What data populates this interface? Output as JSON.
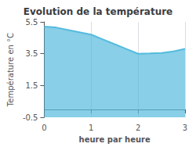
{
  "chart_data": {
    "type": "area",
    "title": "Evolution de la température",
    "xlabel": "heure par heure",
    "ylabel": "Température en °C",
    "color": "#55bbdd",
    "x": [
      0,
      0.25,
      0.5,
      0.75,
      1.0,
      1.25,
      1.5,
      1.75,
      2.0,
      2.25,
      2.5,
      2.75,
      3.0
    ],
    "values": [
      5.2,
      5.15,
      5.0,
      4.85,
      4.7,
      4.4,
      4.1,
      3.8,
      3.5,
      3.52,
      3.55,
      3.65,
      3.8
    ],
    "xlim": [
      0,
      3
    ],
    "xticks": [
      0,
      1,
      2,
      3
    ],
    "ylim": [
      -0.5,
      5.5
    ],
    "yticks": [
      -0.5,
      1.5,
      3.5,
      5.5
    ],
    "grid": "x"
  }
}
